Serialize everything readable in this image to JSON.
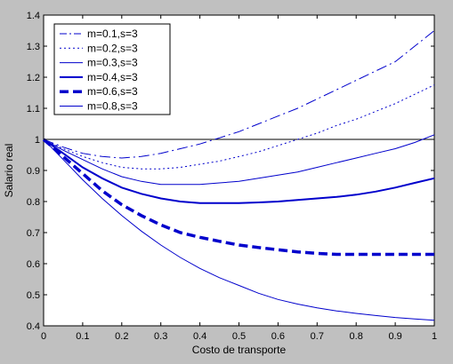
{
  "chart_data": {
    "type": "line",
    "title": "",
    "xlabel": "Costo de transporte",
    "ylabel": "Salario real",
    "xlim": [
      0,
      1
    ],
    "ylim": [
      0.4,
      1.4
    ],
    "xticks": [
      "0",
      "0.1",
      "0.2",
      "0.3",
      "0.4",
      "0.5",
      "0.6",
      "0.7",
      "0.8",
      "0.9",
      "1"
    ],
    "yticks": [
      "0.4",
      "0.5",
      "0.6",
      "0.7",
      "0.8",
      "0.9",
      "1",
      "1.1",
      "1.2",
      "1.3",
      "1.4"
    ],
    "grid": false,
    "legend_position": "top-left",
    "background_color": "#c0c0c0",
    "plot_area_color": "#ffffff",
    "line_color": "#0000cc",
    "reference_line": {
      "y": 1,
      "color": "#000000"
    },
    "x": [
      0,
      0.05,
      0.1,
      0.15,
      0.2,
      0.25,
      0.3,
      0.35,
      0.4,
      0.45,
      0.5,
      0.55,
      0.6,
      0.65,
      0.7,
      0.75,
      0.8,
      0.85,
      0.9,
      0.95,
      1.0
    ],
    "series": [
      {
        "name": "m=0.1,s=3",
        "style": "dashdot",
        "width": 1,
        "values": [
          1.0,
          0.975,
          0.955,
          0.945,
          0.94,
          0.945,
          0.955,
          0.97,
          0.985,
          1.005,
          1.025,
          1.05,
          1.075,
          1.1,
          1.13,
          1.16,
          1.19,
          1.22,
          1.25,
          1.3,
          1.35
        ]
      },
      {
        "name": "m=0.2,s=3",
        "style": "dotted",
        "width": 1,
        "values": [
          1.0,
          0.97,
          0.945,
          0.925,
          0.91,
          0.905,
          0.905,
          0.91,
          0.92,
          0.93,
          0.945,
          0.96,
          0.98,
          1.0,
          1.02,
          1.045,
          1.065,
          1.09,
          1.115,
          1.145,
          1.175
        ]
      },
      {
        "name": "m=0.3,s=3",
        "style": "solid",
        "width": 1,
        "values": [
          1.0,
          0.965,
          0.935,
          0.905,
          0.88,
          0.865,
          0.855,
          0.855,
          0.855,
          0.86,
          0.865,
          0.875,
          0.885,
          0.895,
          0.91,
          0.925,
          0.94,
          0.955,
          0.97,
          0.99,
          1.015
        ]
      },
      {
        "name": "m=0.4,s=3",
        "style": "solid",
        "width": 2,
        "values": [
          1.0,
          0.955,
          0.91,
          0.875,
          0.845,
          0.825,
          0.81,
          0.8,
          0.795,
          0.795,
          0.795,
          0.797,
          0.8,
          0.805,
          0.81,
          0.815,
          0.822,
          0.832,
          0.845,
          0.86,
          0.875
        ]
      },
      {
        "name": "m=0.6,s=3",
        "style": "dashed",
        "width": 3.5,
        "values": [
          1.0,
          0.945,
          0.89,
          0.835,
          0.79,
          0.755,
          0.725,
          0.7,
          0.685,
          0.672,
          0.66,
          0.652,
          0.645,
          0.638,
          0.633,
          0.63,
          0.63,
          0.63,
          0.63,
          0.63,
          0.63
        ]
      },
      {
        "name": "m=0.8,s=3",
        "style": "solid",
        "width": 1,
        "values": [
          1.0,
          0.935,
          0.87,
          0.81,
          0.755,
          0.705,
          0.66,
          0.62,
          0.585,
          0.555,
          0.53,
          0.505,
          0.485,
          0.47,
          0.458,
          0.448,
          0.44,
          0.433,
          0.427,
          0.422,
          0.418
        ]
      }
    ]
  }
}
